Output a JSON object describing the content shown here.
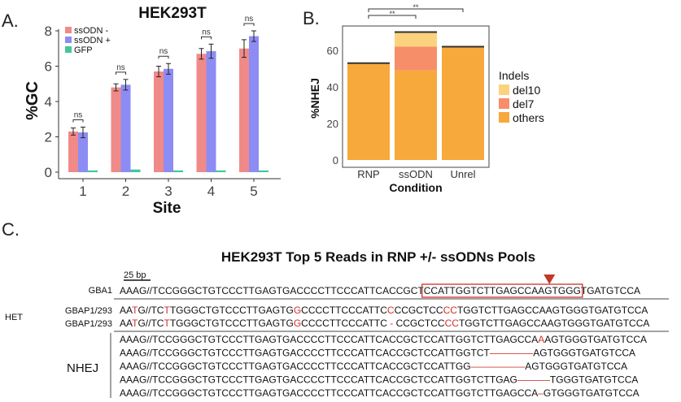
{
  "panels": {
    "a": {
      "letter": "A.",
      "chart_data": {
        "type": "bar",
        "title": "HEK293T",
        "xlabel": "Site",
        "ylabel": "%GC",
        "categories": [
          "1",
          "2",
          "3",
          "4",
          "5"
        ],
        "y_ticks": [
          "0",
          "2",
          "4",
          "6",
          "8"
        ],
        "ylim": [
          0,
          8.6
        ],
        "series": [
          {
            "name": "ssODN -",
            "color": "#f08a88",
            "values": [
              2.3,
              4.8,
              5.7,
              6.7,
              7.0
            ],
            "err": [
              0.2,
              0.2,
              0.3,
              0.3,
              0.5
            ]
          },
          {
            "name": "ssODN +",
            "color": "#8c8cf4",
            "values": [
              2.25,
              4.95,
              5.85,
              6.85,
              7.7
            ],
            "err": [
              0.3,
              0.3,
              0.3,
              0.4,
              0.3
            ]
          },
          {
            "name": "GFP",
            "color": "#43c6a0",
            "values": [
              0.1,
              0.15,
              0.1,
              0.1,
              0.1
            ],
            "err": [
              0,
              0,
              0,
              0,
              0
            ]
          }
        ],
        "significance": [
          "ns",
          "ns",
          "ns",
          "ns",
          "ns"
        ],
        "legend_position": "top-left"
      }
    },
    "b": {
      "letter": "B.",
      "chart_data": {
        "type": "bar",
        "stacked": true,
        "xlabel": "Condition",
        "ylabel": "%NHEJ",
        "categories": [
          "RNP",
          "ssODN",
          "Unrel"
        ],
        "y_ticks": [
          "0",
          "20",
          "40",
          "60"
        ],
        "ylim": [
          0,
          73
        ],
        "series": [
          {
            "name": "others",
            "color": "#f7a93b",
            "values": [
              53,
              49,
              62
            ]
          },
          {
            "name": "del7",
            "color": "#f68f69",
            "values": [
              0,
              13,
              0
            ]
          },
          {
            "name": "del10",
            "color": "#fbd37f",
            "values": [
              0,
              8,
              0
            ]
          }
        ],
        "legend_title": "Indels",
        "legend_order": [
          "del10",
          "del7",
          "others"
        ],
        "significance": [
          {
            "from": "RNP",
            "to": "ssODN",
            "label": "**"
          },
          {
            "from": "RNP",
            "to": "Unrel",
            "label": "**"
          }
        ]
      }
    },
    "c": {
      "letter": "C.",
      "title": "HEK293T Top 5 Reads in RNP +/- ssODNs Pools",
      "scale_label": "25 bp",
      "ref": {
        "label": "GBA1",
        "pre": "AAAG//TCCGGGCTGTCCCTTGAGTGACCCCTTCCCATTCACCGCT",
        "boxed": "CCATTGGTCTTGAGCCAAGTGGG",
        "post": "TGATGTCCA"
      },
      "het_label": "HET",
      "het_rows": [
        {
          "label": "GBAP1/293",
          "segments": [
            {
              "t": "AA",
              "c": "#111111"
            },
            {
              "t": "T",
              "c": "#d0302a"
            },
            {
              "t": "G//TC",
              "c": "#111111"
            },
            {
              "t": "T",
              "c": "#d0302a"
            },
            {
              "t": "TGGGCTGTCCCTTGAGTG",
              "c": "#111111"
            },
            {
              "t": "G",
              "c": "#d0302a"
            },
            {
              "t": "CCCCTTCCCATTC",
              "c": "#111111"
            },
            {
              "t": "C",
              "c": "#d0302a"
            },
            {
              "t": "CCGCTCC",
              "c": "#111111"
            },
            {
              "t": "CC",
              "c": "#d0302a"
            },
            {
              "t": "TGGTCTTGAGCCAAGTGGGTGATGTCCA",
              "c": "#111111"
            }
          ]
        },
        {
          "label": "GBAP1/293",
          "segments": [
            {
              "t": "AA",
              "c": "#111111"
            },
            {
              "t": "T",
              "c": "#d0302a"
            },
            {
              "t": "G//TC",
              "c": "#111111"
            },
            {
              "t": "T",
              "c": "#d0302a"
            },
            {
              "t": "TGGGCTGTCCCTTGAGTG",
              "c": "#111111"
            },
            {
              "t": "G",
              "c": "#d0302a"
            },
            {
              "t": "CCCCTTCCCATTC ",
              "c": "#111111"
            },
            {
              "t": "-",
              "c": "#d0302a"
            },
            {
              "t": " CCGCTCC",
              "c": "#111111"
            },
            {
              "t": "CC",
              "c": "#d0302a"
            },
            {
              "t": "TGGTCTTGAGCCAAGTGGGTGATGTCCA",
              "c": "#111111"
            }
          ]
        }
      ],
      "nhej_label": "NHEJ",
      "nhej_rows": [
        {
          "segments": [
            {
              "t": "AAAG//TCCGGGCTGTCCCTTGAGTGACCCCTTCCCATTCACCGCTCCATTGGTCTTGAGCCA",
              "c": "#111111"
            },
            {
              "t": "A",
              "c": "#d0302a"
            },
            {
              "t": "AGTGGGTGATGTCCA",
              "c": "#111111"
            }
          ]
        },
        {
          "segments": [
            {
              "t": "AAAG//TCCGGGCTGTCCCTTGAGTGACCCCTTCCCATTCACCGCTCCATTGGTCT",
              "c": "#111111"
            },
            {
              "t": "––––––––",
              "c": "#d0302a"
            },
            {
              "t": "AGTGGGTGATGTCCA",
              "c": "#111111"
            }
          ]
        },
        {
          "segments": [
            {
              "t": "AAAG//TCCGGGCTGTCCCTTGAGTGACCCCTTCCCATTCACCGCTCCATTGG",
              "c": "#111111"
            },
            {
              "t": "––––––––––",
              "c": "#d0302a"
            },
            {
              "t": "AGTGGGTGATGTCCA",
              "c": "#111111"
            }
          ]
        },
        {
          "segments": [
            {
              "t": "AAAG//TCCGGGCTGTCCCTTGAGTGACCCCTTCCCATTCACCGCTCCATTGGTCTTGAG",
              "c": "#111111"
            },
            {
              "t": "––––––",
              "c": "#d0302a"
            },
            {
              "t": "TGGGTGATGTCCA",
              "c": "#111111"
            }
          ]
        },
        {
          "segments": [
            {
              "t": "AAAG//TCCGGGCTGTCCCTTGAGTGACCCCTTCCCATTCACCGCTCCATTGGTCTTGAGCCA",
              "c": "#111111"
            },
            {
              "t": "–",
              "c": "#d0302a"
            },
            {
              "t": "GTGGGTGATGTCCA",
              "c": "#111111"
            }
          ]
        }
      ]
    }
  }
}
